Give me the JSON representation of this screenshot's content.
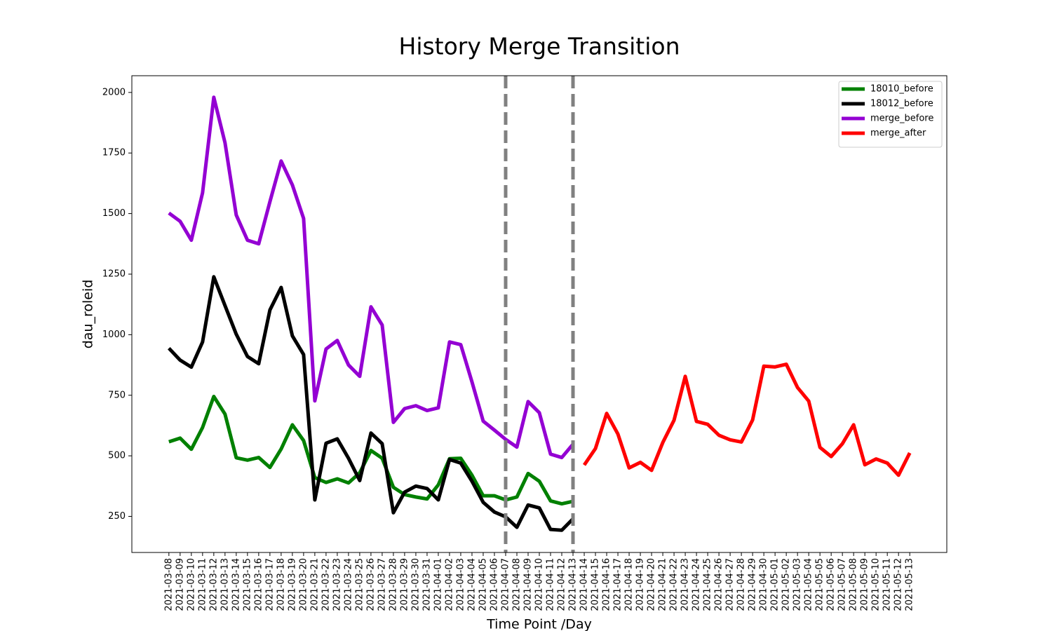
{
  "chart_data": {
    "type": "line",
    "title": "History Merge Transition",
    "x_label": "Time Point /Day",
    "y_label": "dau_roleid",
    "categories": [
      "2021-03-08",
      "2021-03-09",
      "2021-03-10",
      "2021-03-11",
      "2021-03-12",
      "2021-03-13",
      "2021-03-14",
      "2021-03-15",
      "2021-03-16",
      "2021-03-17",
      "2021-03-18",
      "2021-03-19",
      "2021-03-20",
      "2021-03-21",
      "2021-03-22",
      "2021-03-23",
      "2021-03-24",
      "2021-03-25",
      "2021-03-26",
      "2021-03-27",
      "2021-03-28",
      "2021-03-29",
      "2021-03-30",
      "2021-03-31",
      "2021-04-01",
      "2021-04-02",
      "2021-04-03",
      "2021-04-04",
      "2021-04-05",
      "2021-04-06",
      "2021-04-07",
      "2021-04-08",
      "2021-04-09",
      "2021-04-10",
      "2021-04-11",
      "2021-04-12",
      "2021-04-13",
      "2021-04-14",
      "2021-04-15",
      "2021-04-16",
      "2021-04-17",
      "2021-04-18",
      "2021-04-19",
      "2021-04-20",
      "2021-04-21",
      "2021-04-22",
      "2021-04-23",
      "2021-04-24",
      "2021-04-25",
      "2021-04-26",
      "2021-04-27",
      "2021-04-28",
      "2021-04-29",
      "2021-04-30",
      "2021-05-01",
      "2021-05-02",
      "2021-05-03",
      "2021-05-04",
      "2021-05-05",
      "2021-05-06",
      "2021-05-07",
      "2021-05-08",
      "2021-05-09",
      "2021-05-10",
      "2021-05-11",
      "2021-05-12",
      "2021-05-13"
    ],
    "series": [
      {
        "name": "18010_before",
        "color": "#008000",
        "values": [
          558,
          573,
          527,
          617,
          745,
          672,
          492,
          482,
          493,
          452,
          528,
          628,
          563,
          410,
          390,
          405,
          388,
          430,
          522,
          490,
          370,
          340,
          330,
          322,
          380,
          488,
          490,
          420,
          335,
          335,
          318,
          330,
          427,
          395,
          314,
          302,
          312,
          null,
          null,
          null,
          null,
          null,
          null,
          null,
          null,
          null,
          null,
          null,
          null,
          null,
          null,
          null,
          null,
          null,
          null,
          null,
          null,
          null,
          null,
          null,
          null,
          null,
          null,
          null,
          null,
          null,
          null
        ]
      },
      {
        "name": "18012_before",
        "color": "#000000",
        "values": [
          944,
          895,
          866,
          970,
          1239,
          1120,
          1002,
          910,
          880,
          1102,
          1195,
          995,
          918,
          318,
          552,
          570,
          490,
          398,
          594,
          550,
          265,
          350,
          375,
          365,
          318,
          485,
          470,
          395,
          308,
          268,
          248,
          205,
          297,
          285,
          196,
          193,
          240,
          null,
          null,
          null,
          null,
          null,
          null,
          null,
          null,
          null,
          null,
          null,
          null,
          null,
          null,
          null,
          null,
          null,
          null,
          null,
          null,
          null,
          null,
          null,
          null,
          null,
          null,
          null,
          null,
          null,
          null
        ]
      },
      {
        "name": "merge_before",
        "color": "#9400d3",
        "values": [
          1502,
          1468,
          1390,
          1586,
          1980,
          1792,
          1494,
          1390,
          1375,
          1549,
          1717,
          1618,
          1480,
          727,
          941,
          976,
          875,
          828,
          1115,
          1040,
          638,
          695,
          707,
          687,
          698,
          970,
          959,
          805,
          643,
          606,
          568,
          536,
          724,
          678,
          507,
          493,
          548,
          null,
          null,
          null,
          null,
          null,
          null,
          null,
          null,
          null,
          null,
          null,
          null,
          null,
          null,
          null,
          null,
          null,
          null,
          null,
          null,
          null,
          null,
          null,
          null,
          null,
          null,
          null,
          null,
          null,
          null
        ]
      },
      {
        "name": "merge_after",
        "color": "#ff0000",
        "values": [
          null,
          null,
          null,
          null,
          null,
          null,
          null,
          null,
          null,
          null,
          null,
          null,
          null,
          null,
          null,
          null,
          null,
          null,
          null,
          null,
          null,
          null,
          null,
          null,
          null,
          null,
          null,
          null,
          null,
          null,
          null,
          null,
          null,
          null,
          null,
          null,
          null,
          462,
          530,
          675,
          590,
          450,
          473,
          440,
          555,
          647,
          828,
          642,
          630,
          585,
          566,
          557,
          648,
          870,
          867,
          878,
          782,
          726,
          535,
          497,
          550,
          628,
          463,
          487,
          470,
          420,
          512
        ]
      }
    ],
    "vlines": [
      "2021-04-07",
      "2021-04-13"
    ],
    "vline_color": "#808080",
    "ylim": [
      101,
      2069
    ],
    "yticks": [
      250,
      500,
      750,
      1000,
      1250,
      1500,
      1750,
      2000
    ],
    "legend": "upper right",
    "grid": false
  }
}
